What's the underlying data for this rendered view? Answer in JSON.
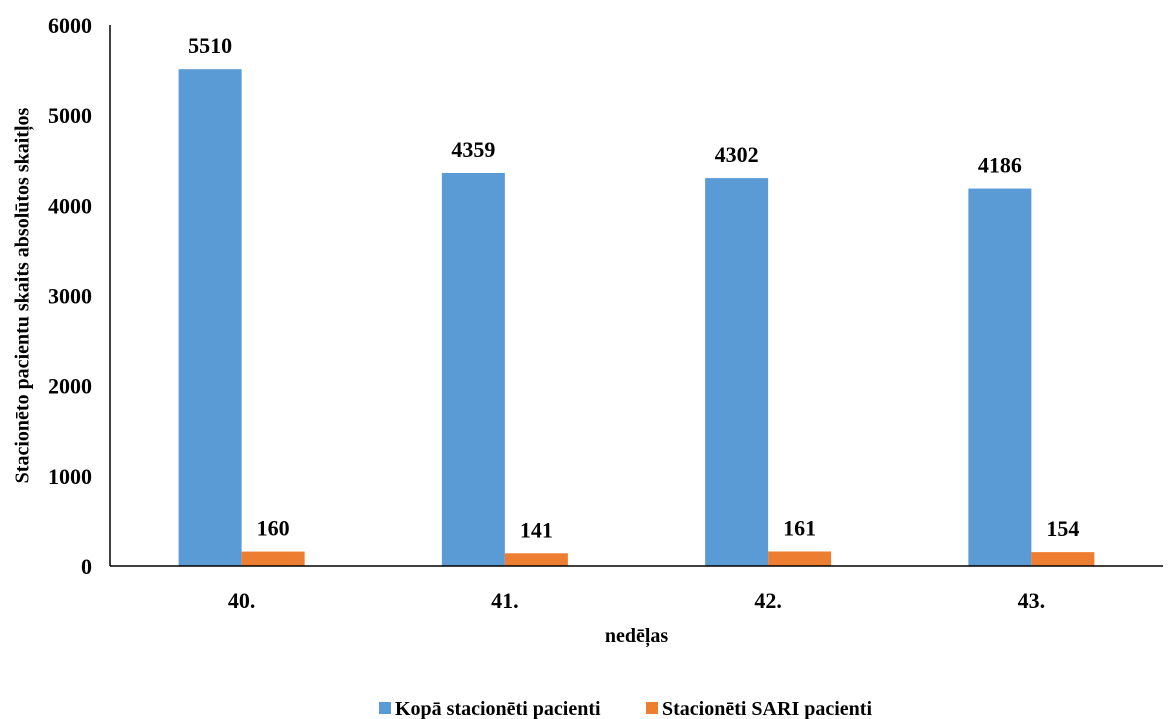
{
  "chart_data": {
    "type": "bar",
    "categories": [
      "40.",
      "41.",
      "42.",
      "43."
    ],
    "series": [
      {
        "name": "Kopā stacionēti pacienti",
        "values": [
          5510,
          4359,
          4302,
          4186
        ],
        "color": "#5b9bd5"
      },
      {
        "name": "Stacionēti SARI pacienti",
        "values": [
          160,
          141,
          161,
          154
        ],
        "color": "#ed7d31"
      }
    ],
    "xlabel": "nedēļas",
    "ylabel": "Stacionēto pacientu skaits absolūtos skaitļos",
    "ylim": [
      0,
      6000
    ],
    "yticks": [
      0,
      1000,
      2000,
      3000,
      4000,
      5000,
      6000
    ],
    "grid": false,
    "legend_position": "bottom",
    "data_labels": true
  }
}
